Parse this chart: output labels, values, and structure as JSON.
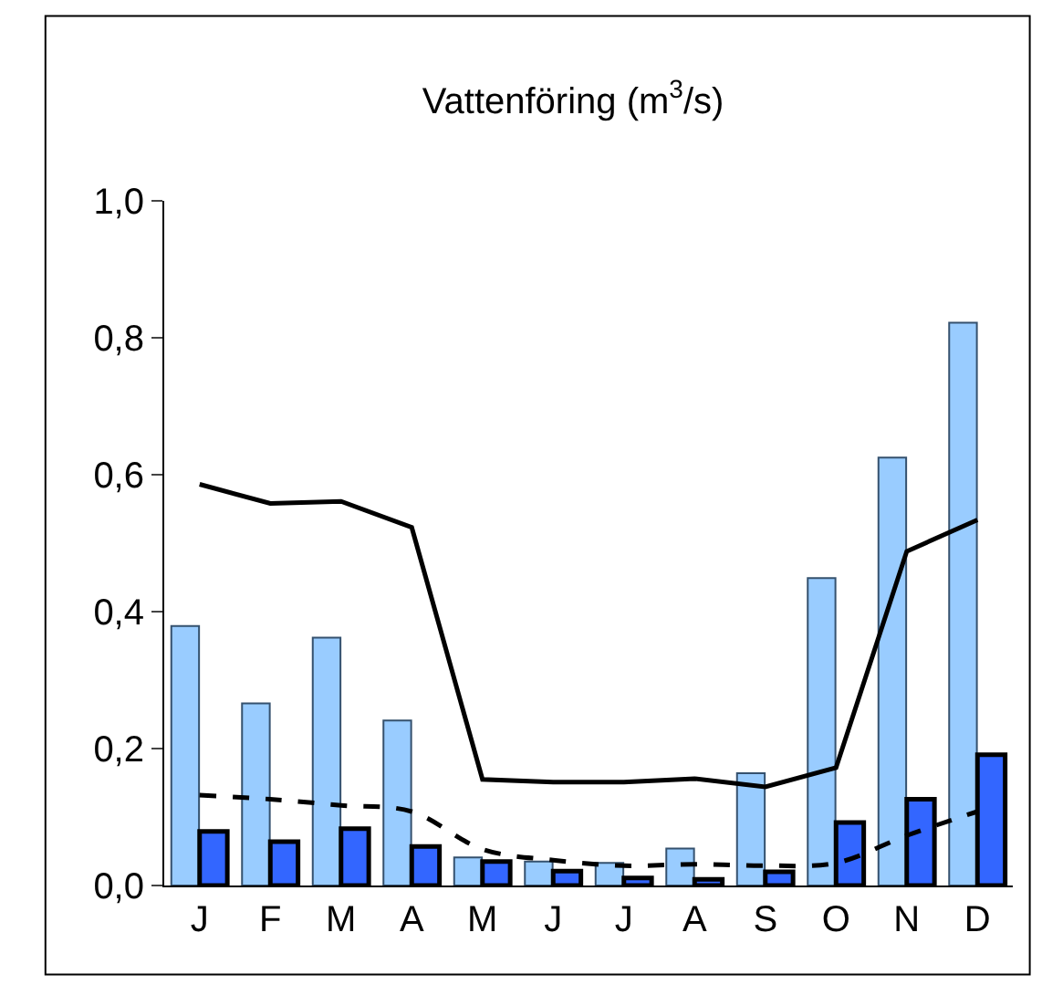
{
  "chart_data": {
    "type": "bar",
    "title": "Vattenföring (m$^{3}$/s)",
    "categories": [
      "J",
      "F",
      "M",
      "A",
      "M",
      "J",
      "J",
      "A",
      "S",
      "O",
      "N",
      "D"
    ],
    "series": [
      {
        "color": "#99ccff",
        "values": [
          0.379,
          0.266,
          0.362,
          0.241,
          0.041,
          0.035,
          0.033,
          0.054,
          0.164,
          0.449,
          0.625,
          0.822
        ]
      },
      {
        "color": "#3366ff",
        "values": [
          0.079,
          0.064,
          0.083,
          0.057,
          0.035,
          0.021,
          0.011,
          0.009,
          0.02,
          0.092,
          0.126,
          0.191
        ]
      },
      {
        "type": "line",
        "color": "#000000",
        "line_style": "solid",
        "values": [
          0.586,
          0.558,
          0.561,
          0.523,
          0.155,
          0.151,
          0.151,
          0.156,
          0.144,
          0.172,
          0.488,
          0.534
        ]
      },
      {
        "type": "line",
        "color": "#000000",
        "line_style": "dashed",
        "values": [
          0.132,
          0.126,
          0.117,
          0.108,
          0.053,
          0.037,
          0.029,
          0.031,
          0.029,
          0.033,
          0.073,
          0.108
        ]
      }
    ],
    "ylim": [
      0,
      1.0
    ],
    "yticks": [
      {
        "value": 0,
        "label": "0,0"
      },
      {
        "value": 0.2,
        "label": "0,2"
      },
      {
        "value": 0.4,
        "label": "0,4"
      },
      {
        "value": 0.6,
        "label": "0,6"
      },
      {
        "value": 0.8,
        "label": "0,8"
      },
      {
        "value": 1.0,
        "label": "1,0"
      }
    ],
    "marker": "none"
  }
}
